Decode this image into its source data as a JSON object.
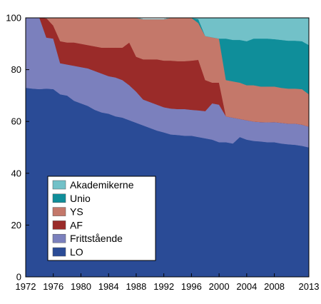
{
  "chart_data": {
    "type": "area",
    "stacked": true,
    "title": "",
    "xlabel": "",
    "ylabel": "",
    "xlim": [
      1972,
      2013
    ],
    "ylim": [
      0,
      100
    ],
    "grid": false,
    "legend_position": "bottom-left",
    "x_ticks": [
      1972,
      1976,
      1980,
      1984,
      1988,
      1992,
      1996,
      2000,
      2004,
      2008,
      2013
    ],
    "y_ticks": [
      0,
      20,
      40,
      60,
      80,
      100
    ],
    "x": [
      1972,
      1973,
      1974,
      1975,
      1976,
      1977,
      1978,
      1979,
      1980,
      1981,
      1982,
      1983,
      1984,
      1985,
      1986,
      1987,
      1988,
      1989,
      1990,
      1991,
      1992,
      1993,
      1994,
      1995,
      1996,
      1997,
      1998,
      1999,
      2000,
      2001,
      2002,
      2003,
      2004,
      2005,
      2006,
      2007,
      2008,
      2009,
      2010,
      2011,
      2012,
      2013
    ],
    "series": [
      {
        "name": "LO",
        "color": "#2a4b96",
        "values": [
          73,
          72.7,
          72.5,
          72.7,
          72.5,
          70.5,
          70,
          68,
          67,
          66,
          64.5,
          63.5,
          63,
          62,
          61.5,
          60.5,
          59.5,
          58.5,
          57.5,
          56.5,
          55.8,
          55,
          54.8,
          54.5,
          54.5,
          54,
          53.5,
          53,
          52,
          52,
          51.5,
          54,
          53,
          52.5,
          52.3,
          52,
          52,
          51.5,
          51.2,
          51,
          50.6,
          50
        ]
      },
      {
        "name": "Frittstående",
        "color": "#7b80bd",
        "values": [
          27,
          27.3,
          27.5,
          19.7,
          19.5,
          12,
          12,
          13.5,
          14,
          14.5,
          15,
          15,
          14.5,
          15,
          14.5,
          13.5,
          12,
          10,
          10,
          10,
          9.7,
          10,
          10,
          10.3,
          10,
          10.3,
          10.5,
          14,
          14.5,
          10,
          10,
          7,
          7.5,
          7.5,
          7.5,
          7.7,
          7.8,
          8,
          8,
          8.2,
          8.2,
          8
        ]
      },
      {
        "name": "AF",
        "color": "#9a2b29",
        "values": [
          0,
          0,
          0,
          7.5,
          5,
          8.5,
          8.5,
          9,
          9,
          9,
          9.5,
          10,
          11,
          11.5,
          12.5,
          16.5,
          13.5,
          15.5,
          16.5,
          17.5,
          18,
          18.5,
          18.5,
          18.5,
          19,
          19.5,
          12,
          8,
          8.5,
          0,
          0,
          0,
          0,
          0,
          0,
          0,
          0,
          0,
          0,
          0,
          0,
          0
        ]
      },
      {
        "name": "YS",
        "color": "#c4786a",
        "values": [
          0,
          0,
          0,
          0,
          3,
          9,
          9.5,
          9.5,
          10,
          10.5,
          11,
          11.5,
          11.5,
          11.5,
          11.5,
          9.5,
          15,
          15.5,
          15.5,
          15.5,
          16,
          16.5,
          16.7,
          16.7,
          16.5,
          14.2,
          17,
          17.5,
          17,
          14,
          14,
          14,
          13.5,
          14,
          13.7,
          13.8,
          13.7,
          13.5,
          13.5,
          13.5,
          13.7,
          12.5
        ]
      },
      {
        "name": "Unio",
        "color": "#0f8e9a",
        "values": [
          0,
          0,
          0,
          0,
          0,
          0,
          0,
          0,
          0,
          0,
          0,
          0,
          0,
          0,
          0,
          0,
          0,
          0,
          0,
          0,
          0,
          0,
          0,
          0,
          0,
          1.5,
          0,
          0,
          0,
          16,
          16,
          16.5,
          17,
          18,
          18.5,
          18.5,
          18.3,
          18.5,
          18.5,
          18.5,
          18.5,
          19
        ]
      },
      {
        "name": "Akademikerne",
        "color": "#72c1c8",
        "values": [
          0,
          0,
          0,
          0,
          0,
          0,
          0,
          0,
          0,
          0,
          0,
          0,
          0,
          0,
          0,
          0,
          0,
          0,
          0,
          0,
          0,
          0,
          0,
          0,
          0,
          0.5,
          7,
          7.5,
          8,
          8,
          8.5,
          8.5,
          9,
          8,
          8,
          8,
          8.2,
          8.5,
          8.8,
          8.8,
          9,
          10.5
        ]
      }
    ],
    "legend_order": [
      "Akademikerne",
      "Unio",
      "YS",
      "AF",
      "Frittstående",
      "LO"
    ]
  }
}
